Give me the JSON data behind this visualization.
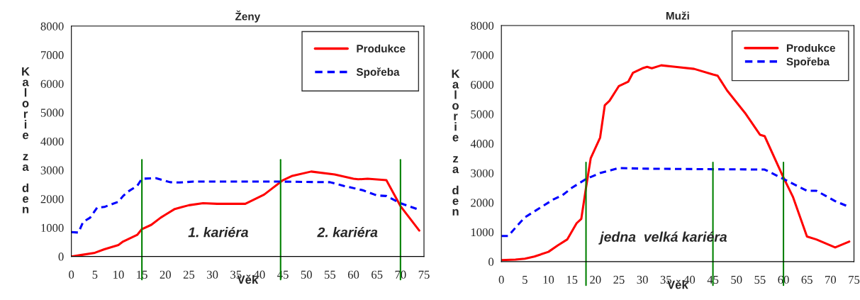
{
  "chart_data": [
    {
      "type": "line",
      "title": "Ženy",
      "xlabel": "Věk",
      "ylabel": "Kalorie za den",
      "xlim": [
        0,
        75
      ],
      "ylim": [
        0,
        8000
      ],
      "xticks": [
        0,
        5,
        10,
        15,
        20,
        25,
        30,
        35,
        40,
        45,
        50,
        55,
        60,
        65,
        70,
        75
      ],
      "yticks": [
        0,
        1000,
        2000,
        3000,
        4000,
        5000,
        6000,
        7000,
        8000
      ],
      "grid": false,
      "legend": "top right",
      "series": [
        {
          "name": "Produkce",
          "color": "#ff0000",
          "line_style": "solid",
          "x": [
            0,
            2,
            5,
            7,
            10,
            11,
            14,
            15,
            17,
            19,
            20,
            22,
            25,
            28,
            31,
            37,
            41,
            45,
            47,
            51,
            56,
            60,
            61,
            63,
            67,
            70,
            74
          ],
          "values": [
            0,
            50,
            130,
            250,
            400,
            520,
            750,
            950,
            1100,
            1350,
            1450,
            1650,
            1780,
            1850,
            1830,
            1830,
            2150,
            2650,
            2800,
            2950,
            2850,
            2700,
            2680,
            2700,
            2650,
            1750,
            900
          ]
        },
        {
          "name": "Spořeba",
          "color": "#0000ff",
          "line_style": "dashed",
          "x": [
            0,
            1.5,
            2.5,
            4,
            5.5,
            7,
            10,
            11,
            12,
            14,
            15,
            18,
            21,
            23,
            26,
            45,
            55,
            58,
            62,
            65,
            67,
            70,
            74
          ],
          "values": [
            850,
            830,
            1200,
            1350,
            1700,
            1720,
            1900,
            2100,
            2250,
            2450,
            2700,
            2720,
            2580,
            2570,
            2600,
            2600,
            2580,
            2450,
            2300,
            2120,
            2100,
            1850,
            1620
          ]
        }
      ],
      "ref_lines": [
        {
          "axis": "x",
          "value": 15,
          "color": "#008000"
        },
        {
          "axis": "x",
          "value": 44.5,
          "color": "#008000"
        },
        {
          "axis": "x",
          "value": 70,
          "color": "#008000"
        }
      ],
      "annotations": [
        "1. kariéra",
        "2. kariéra"
      ]
    },
    {
      "type": "line",
      "title": "Muži",
      "xlabel": "Věk",
      "ylabel": "Kalorie za den",
      "xlim": [
        0,
        75
      ],
      "ylim": [
        0,
        8000
      ],
      "xticks": [
        0,
        5,
        10,
        15,
        20,
        25,
        30,
        35,
        40,
        45,
        50,
        55,
        60,
        65,
        70,
        75
      ],
      "yticks": [
        0,
        1000,
        2000,
        3000,
        4000,
        5000,
        6000,
        7000,
        8000
      ],
      "grid": false,
      "legend": "top right",
      "series": [
        {
          "name": "Produkce",
          "color": "#ff0000",
          "line_style": "solid",
          "x": [
            0,
            3,
            5,
            7,
            10,
            12,
            14,
            16,
            17,
            18,
            19,
            21,
            22,
            23,
            25,
            27,
            28,
            30,
            31,
            32,
            34,
            37,
            41,
            45,
            46,
            48,
            52,
            55,
            56,
            60,
            62,
            65,
            67,
            71,
            74
          ],
          "values": [
            50,
            70,
            100,
            170,
            330,
            550,
            750,
            1300,
            1450,
            2500,
            3500,
            4200,
            5300,
            5450,
            5950,
            6100,
            6400,
            6550,
            6600,
            6550,
            6650,
            6600,
            6530,
            6340,
            6300,
            5800,
            5000,
            4300,
            4250,
            2850,
            2200,
            850,
            750,
            480,
            680
          ]
        },
        {
          "name": "Spořeba",
          "color": "#0000ff",
          "line_style": "dashed",
          "x": [
            0,
            1.5,
            3,
            5,
            7,
            9,
            11,
            13,
            15,
            18,
            21,
            25,
            30,
            45,
            56,
            60,
            65,
            67,
            71,
            74
          ],
          "values": [
            870,
            870,
            1150,
            1500,
            1700,
            1900,
            2100,
            2250,
            2500,
            2800,
            3000,
            3170,
            3150,
            3130,
            3120,
            2800,
            2400,
            2400,
            2050,
            1850
          ]
        }
      ],
      "ref_lines": [
        {
          "axis": "x",
          "value": 18,
          "color": "#008000"
        },
        {
          "axis": "x",
          "value": 45,
          "color": "#008000"
        },
        {
          "axis": "x",
          "value": 60,
          "color": "#008000"
        }
      ],
      "annotations": [
        "jedna  velká kariéra"
      ]
    }
  ]
}
